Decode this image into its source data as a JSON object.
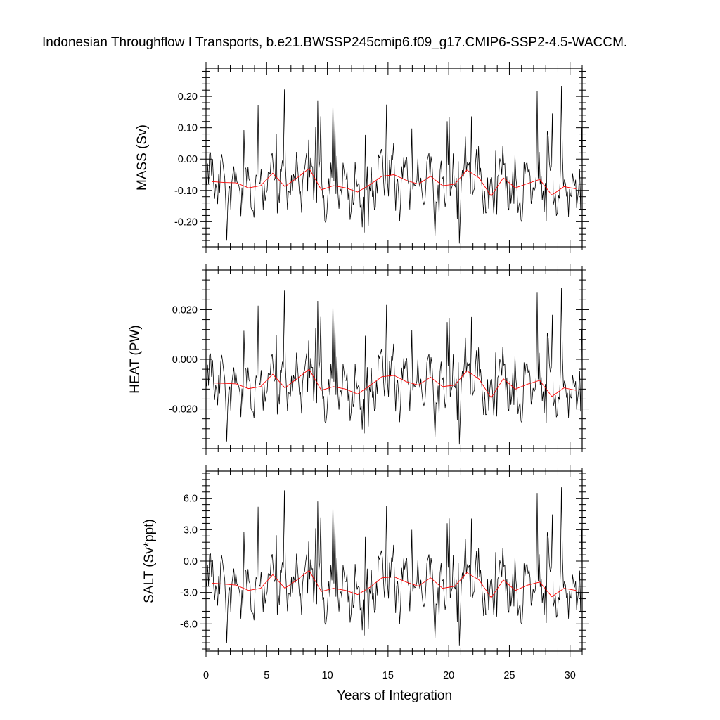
{
  "chart_data": {
    "type": "line",
    "title": "Indonesian Throughflow I Transports, b.e21.BWSSP245cmip6.f09_g17.CMIP6-SSP2-4.5-WACCM.",
    "xlabel": "Years of Integration",
    "xlim": [
      0,
      31
    ],
    "x_ticks": [
      "0",
      "5",
      "10",
      "15",
      "20",
      "25",
      "30"
    ],
    "grid": false,
    "colors": {
      "monthly": "#000000",
      "annual": "#ff0000"
    },
    "panels": [
      {
        "ylabel": "MASS (Sv)",
        "ylim": [
          -0.28,
          0.29
        ],
        "y_ticks": [
          -0.2,
          -0.1,
          0.0,
          0.1,
          0.2
        ],
        "y_tick_labels": [
          "-0.20",
          "-0.10",
          "0.00",
          "0.10",
          "0.20"
        ],
        "annual_mean": [
          -0.072,
          -0.075,
          -0.076,
          -0.092,
          -0.085,
          -0.045,
          -0.088,
          -0.06,
          -0.03,
          -0.098,
          -0.085,
          -0.092,
          -0.105,
          -0.082,
          -0.055,
          -0.05,
          -0.068,
          -0.08,
          -0.055,
          -0.085,
          -0.08,
          -0.035,
          -0.06,
          -0.118,
          -0.06,
          -0.092,
          -0.078,
          -0.065,
          -0.115,
          -0.088,
          -0.095
        ]
      },
      {
        "ylabel": "HEAT (PW)",
        "ylim": [
          -0.036,
          0.036
        ],
        "y_ticks": [
          -0.02,
          0.0,
          0.02
        ],
        "y_tick_labels": [
          "-0.020",
          "0.000",
          "0.020"
        ],
        "annual_mean": [
          -0.0095,
          -0.0097,
          -0.0099,
          -0.0118,
          -0.011,
          -0.006,
          -0.0115,
          -0.0078,
          -0.004,
          -0.0125,
          -0.011,
          -0.012,
          -0.014,
          -0.0106,
          -0.007,
          -0.0065,
          -0.009,
          -0.0104,
          -0.0072,
          -0.011,
          -0.0104,
          -0.0046,
          -0.008,
          -0.0155,
          -0.0078,
          -0.012,
          -0.01,
          -0.0085,
          -0.015,
          -0.0115,
          -0.0125
        ]
      },
      {
        "ylabel": "SALT (Sv*ppt)",
        "ylim": [
          -8.6,
          8.6
        ],
        "y_ticks": [
          -6.0,
          -3.0,
          0.0,
          3.0,
          6.0
        ],
        "y_tick_labels": [
          "-6.0",
          "-3.0",
          "0.0",
          "3.0",
          "6.0"
        ],
        "annual_mean": [
          -2.1,
          -2.2,
          -2.3,
          -2.8,
          -2.6,
          -1.3,
          -2.6,
          -1.8,
          -0.9,
          -2.9,
          -2.6,
          -2.8,
          -3.2,
          -2.5,
          -1.6,
          -1.5,
          -2.0,
          -2.4,
          -1.6,
          -2.6,
          -2.4,
          -1.1,
          -1.8,
          -3.5,
          -1.8,
          -2.8,
          -2.3,
          -2.0,
          -3.4,
          -2.6,
          -2.8
        ]
      }
    ]
  }
}
